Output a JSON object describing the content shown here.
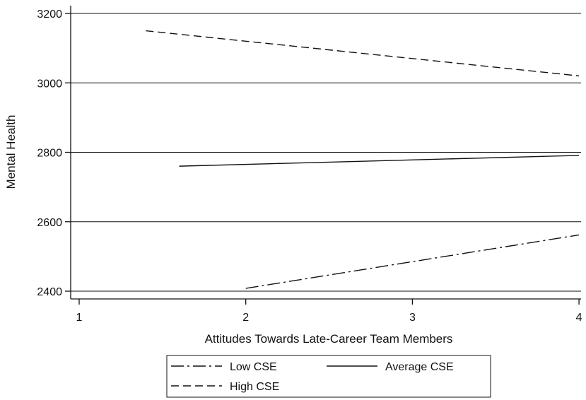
{
  "chart_data": {
    "type": "line",
    "xlabel": "Attitudes Towards Late-Career Team Members",
    "ylabel": "Mental Health",
    "xlim": [
      1,
      4
    ],
    "ylim": [
      2400,
      3200
    ],
    "xticks": [
      1,
      2,
      3,
      4
    ],
    "yticks": [
      2400,
      2600,
      2800,
      3000,
      3200
    ],
    "grid": "horizontal",
    "legend_position": "bottom",
    "series": [
      {
        "name": "Low CSE",
        "style": "dash-dot",
        "color": "#111111",
        "x": [
          2,
          4
        ],
        "y": [
          2408,
          2562
        ]
      },
      {
        "name": "Average CSE",
        "style": "solid",
        "color": "#111111",
        "x": [
          1.6,
          4
        ],
        "y": [
          2760,
          2791
        ]
      },
      {
        "name": "High CSE",
        "style": "dashed",
        "color": "#111111",
        "x": [
          1.4,
          4
        ],
        "y": [
          3150,
          3020
        ]
      }
    ]
  }
}
